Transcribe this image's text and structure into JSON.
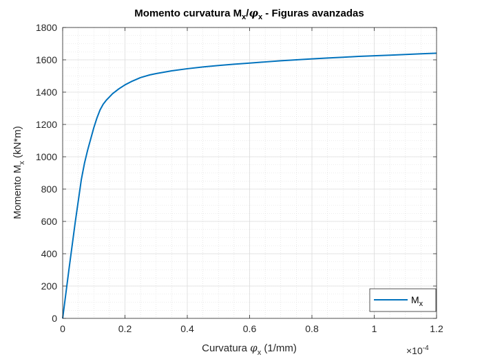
{
  "chart_data": {
    "type": "line",
    "title": {
      "pre": "Momento curvatura M",
      "sub1": "x",
      "mid": "/",
      "phi": "φ",
      "sub2": "x",
      "post": " - Figuras avanzadas"
    },
    "xlabel": {
      "pre": "Curvatura ",
      "phi": "φ",
      "sub": "x",
      "post": " (1/mm)"
    },
    "ylabel": {
      "pre": "Momento M",
      "sub": "x",
      "post": " (kN*m)"
    },
    "x_exponent": {
      "base": "×10",
      "power": "-4"
    },
    "xlim": [
      0,
      1.2
    ],
    "ylim": [
      0,
      1800
    ],
    "xticks": [
      0,
      0.2,
      0.4,
      0.6,
      0.8,
      1,
      1.2
    ],
    "xtick_labels": [
      "0",
      "0.2",
      "0.4",
      "0.6",
      "0.8",
      "1",
      "1.2"
    ],
    "yticks": [
      0,
      200,
      400,
      600,
      800,
      1000,
      1200,
      1400,
      1600,
      1800
    ],
    "ytick_labels": [
      "0",
      "200",
      "400",
      "600",
      "800",
      "1000",
      "1200",
      "1400",
      "1600",
      "1800"
    ],
    "grid": true,
    "minor_grid": true,
    "legend_position": "bottom-right",
    "series": [
      {
        "name": "M",
        "name_sub": "x",
        "color": "#0072BD",
        "x": [
          0,
          0.02,
          0.04,
          0.06,
          0.07,
          0.08,
          0.09,
          0.1,
          0.11,
          0.12,
          0.13,
          0.14,
          0.15,
          0.16,
          0.18,
          0.2,
          0.22,
          0.25,
          0.28,
          0.3,
          0.35,
          0.4,
          0.45,
          0.5,
          0.55,
          0.6,
          0.65,
          0.7,
          0.75,
          0.8,
          0.85,
          0.9,
          0.95,
          1.0,
          1.05,
          1.1,
          1.15,
          1.2
        ],
        "y": [
          0,
          300,
          590,
          860,
          960,
          1040,
          1110,
          1180,
          1240,
          1290,
          1325,
          1350,
          1370,
          1390,
          1420,
          1445,
          1465,
          1490,
          1507,
          1515,
          1532,
          1545,
          1556,
          1565,
          1573,
          1580,
          1587,
          1594,
          1600,
          1606,
          1611,
          1616,
          1621,
          1625,
          1629,
          1633,
          1637,
          1641
        ]
      }
    ]
  }
}
